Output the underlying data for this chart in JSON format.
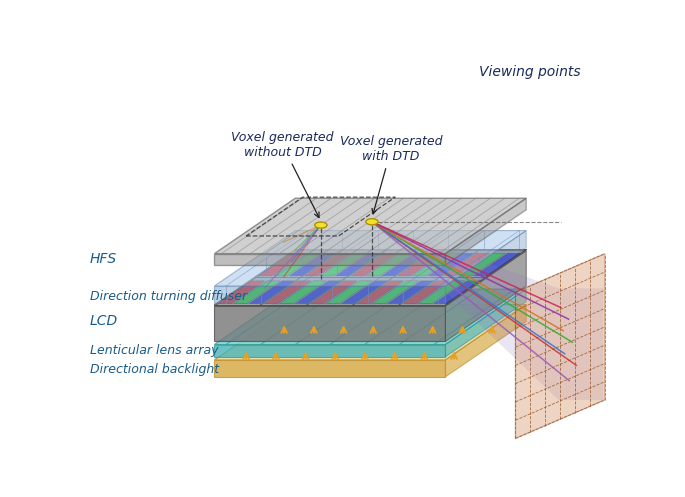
{
  "bg_color": "#ffffff",
  "label_color": "#1a5c8a",
  "colors": {
    "pixel_red": "#dd2222",
    "pixel_green": "#22cc22",
    "pixel_blue": "#2222cc",
    "lenticular_top": "#70d8d8",
    "lenticular_side": "#40b0b8",
    "lenticular_alpha": 0.85,
    "backlight_face": "#f5e0a0",
    "backlight_side": "#d4a840",
    "backlight_alpha": 0.9,
    "arrow_color": "#e8a020",
    "viewing_face": "#d4956a",
    "viewing_alpha": 0.4,
    "voxel_color": "#f0e030",
    "hfs_top": "#b8b8b8",
    "hfs_side": "#909090",
    "hfs_alpha": 0.65,
    "dtd_top": "#a8c8e8",
    "dtd_side": "#7aa0c8",
    "dtd_alpha": 0.55,
    "lcd_top": "#989898",
    "lcd_side": "#787878",
    "lcd_alpha": 0.9,
    "beam_colors": [
      "#9b59b6",
      "#cc3333",
      "#3377cc",
      "#33aa33",
      "#cc7722",
      "#8833aa",
      "#cc2255"
    ],
    "beam_alpha": 0.85,
    "dashed_line": "#404040",
    "cone_color": "#9070c0",
    "cone_alpha": 0.18
  },
  "labels": {
    "hfs": "HFS",
    "dtd": "Direction turning diffuser",
    "lcd": "LCD",
    "lenticular": "Lenticular lens array",
    "backlight": "Directional backlight",
    "viewing": "Viewing points",
    "voxel_no_dtd": "Voxel generated\nwithout DTD",
    "voxel_dtd": "Voxel generated\nwith DTD"
  }
}
